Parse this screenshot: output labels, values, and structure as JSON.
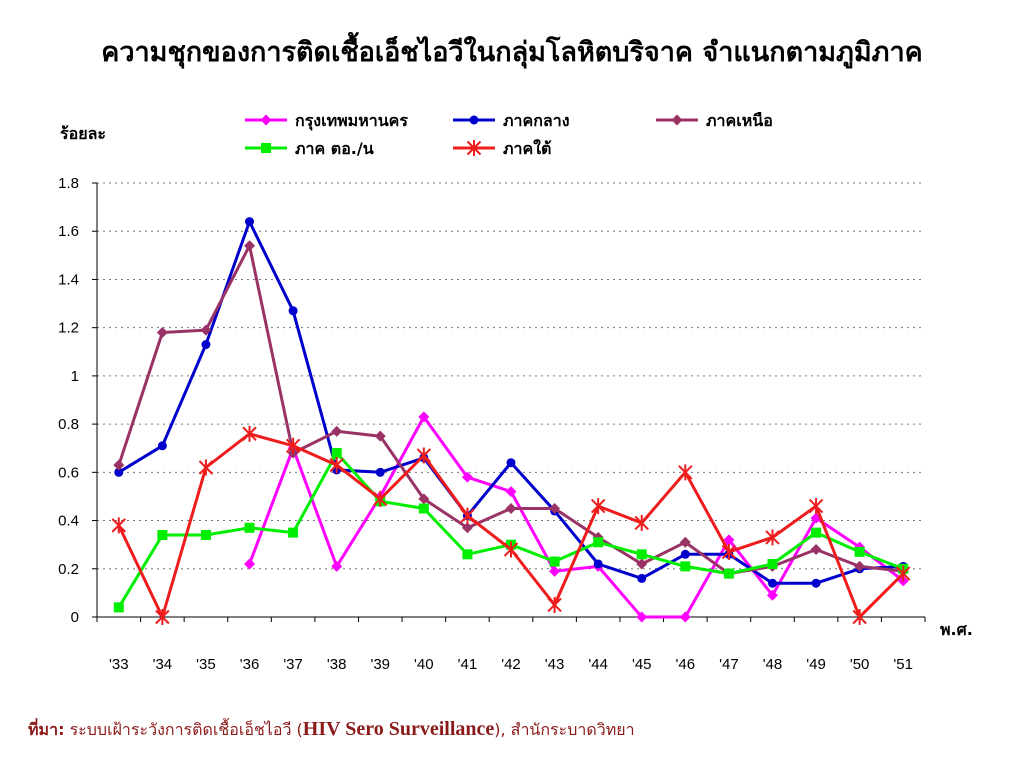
{
  "chart_data": {
    "type": "line",
    "title": "ความชุกของการติดเชื้อเอ็ชไอวีในกลุ่มโลหิตบริจาค จำแนกตามภูมิภาค",
    "ylabel": "ร้อยละ",
    "xlabel": "พ.ศ.",
    "ylim": [
      0,
      1.8
    ],
    "yticks": [
      "0",
      "0.2",
      "0.4",
      "0.6",
      "0.8",
      "1",
      "1.2",
      "1.4",
      "1.6",
      "1.8"
    ],
    "grid": true,
    "legend_position": "top",
    "categories": [
      "'33",
      "'34",
      "'35",
      "'36",
      "'37",
      "'38",
      "'39",
      "'40",
      "'41",
      "'42",
      "'43",
      "'44",
      "'45",
      "'46",
      "'47",
      "'48",
      "'49",
      "'50",
      "'51"
    ],
    "series": [
      {
        "name": "กรุงเทพมหานคร",
        "color": "#ff00ff",
        "marker": "diamond",
        "values": [
          null,
          null,
          null,
          0.22,
          0.7,
          0.21,
          0.5,
          0.83,
          0.58,
          0.52,
          0.19,
          0.21,
          0.0,
          0.0,
          0.32,
          0.09,
          0.41,
          0.29,
          0.15
        ]
      },
      {
        "name": "ภาคกลาง",
        "color": "#0000cc",
        "marker": "circle",
        "values": [
          0.6,
          0.71,
          1.13,
          1.64,
          1.27,
          0.61,
          0.6,
          0.66,
          0.42,
          0.64,
          0.44,
          0.22,
          0.16,
          0.26,
          0.26,
          0.14,
          0.14,
          0.2,
          0.21
        ]
      },
      {
        "name": "ภาคเหนือ",
        "color": "#993366",
        "marker": "diamond",
        "values": [
          0.63,
          1.18,
          1.19,
          1.54,
          0.68,
          0.77,
          0.75,
          0.49,
          0.37,
          0.45,
          0.45,
          0.33,
          0.22,
          0.31,
          0.18,
          0.21,
          0.28,
          0.21,
          0.19
        ]
      },
      {
        "name": "ภาค ตอ./น",
        "color": "#00ee00",
        "marker": "square",
        "values": [
          0.04,
          0.34,
          0.34,
          0.37,
          0.35,
          0.68,
          0.48,
          0.45,
          0.26,
          0.3,
          0.23,
          0.31,
          0.26,
          0.21,
          0.18,
          0.22,
          0.35,
          0.27,
          0.2
        ]
      },
      {
        "name": "ภาคใต้",
        "color": "#ee1c1c",
        "marker": "star",
        "values": [
          0.38,
          0.0,
          0.62,
          0.76,
          0.71,
          0.63,
          0.49,
          0.67,
          0.42,
          0.28,
          0.05,
          0.46,
          0.39,
          0.6,
          0.27,
          0.33,
          0.46,
          0.0,
          0.18
        ]
      }
    ]
  },
  "source": {
    "label": "ที่มา:",
    "text_th": " ระบบเฝ้าระวังการติดเชื้อเอ็ชไอวี (",
    "text_en": "HIV Sero Surveillance",
    "text_tail": "), สำนักระบาดวิทยา"
  }
}
